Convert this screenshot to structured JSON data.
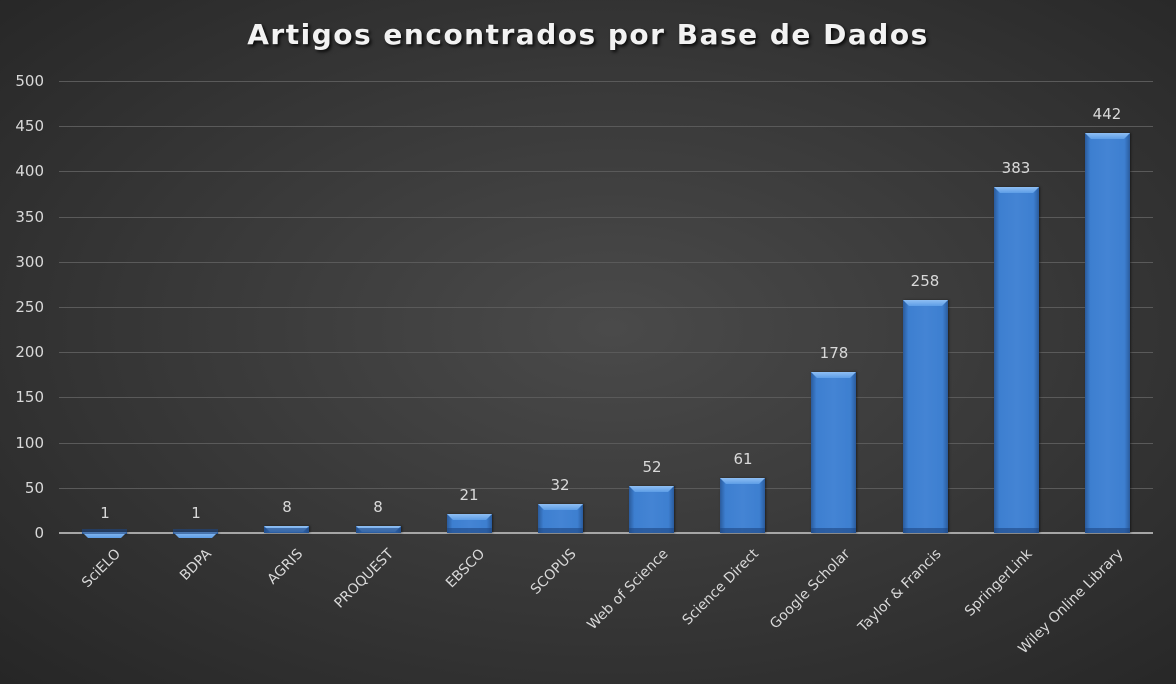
{
  "chart_data": {
    "type": "bar",
    "title": "Artigos encontrados por Base de Dados",
    "xlabel": "",
    "ylabel": "",
    "ylim": [
      0,
      500
    ],
    "yticks": [
      0,
      50,
      100,
      150,
      200,
      250,
      300,
      350,
      400,
      450,
      500
    ],
    "grid": true,
    "legend": "none",
    "categories": [
      "SciELO",
      "BDPA",
      "AGRIS",
      "PROQUEST",
      "EBSCO",
      "SCOPUS",
      "Web of Science",
      "Science Direct",
      "Google Scholar",
      "Taylor & Francis",
      "SpringerLink",
      "Wiley Online Library"
    ],
    "values": [
      1,
      1,
      8,
      8,
      21,
      32,
      52,
      61,
      178,
      258,
      383,
      442
    ],
    "data_labels": true,
    "bar_color": "#4484d4",
    "background_color": "#3a3a3a"
  }
}
